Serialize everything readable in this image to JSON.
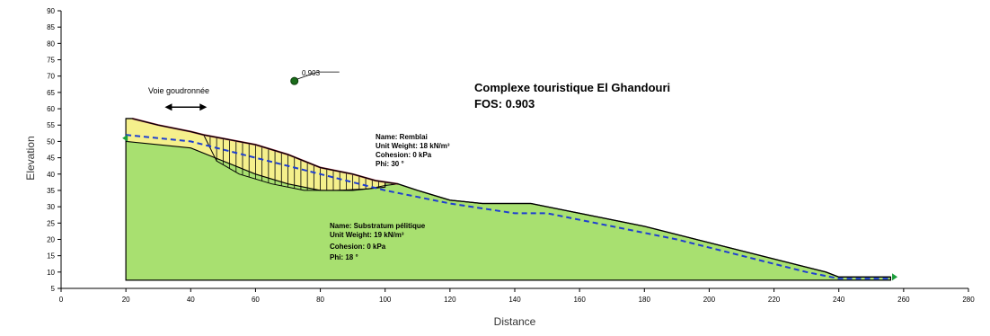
{
  "title": "Complexe touristique El Ghandouri",
  "fos_label": "FOS: 0.903",
  "slip_center_label": "0.903",
  "road_label": "Voie goudronnée",
  "axes": {
    "xlabel": "Distance",
    "ylabel": "Elevation",
    "xlim": [
      0,
      280
    ],
    "ylim": [
      5,
      90
    ],
    "xticks": [
      "0",
      "20",
      "40",
      "60",
      "80",
      "100",
      "120",
      "140",
      "160",
      "180",
      "200",
      "220",
      "240",
      "260",
      "280"
    ],
    "yticks": [
      "5",
      "10",
      "15",
      "20",
      "25",
      "30",
      "35",
      "40",
      "45",
      "50",
      "55",
      "60",
      "65",
      "70",
      "75",
      "80",
      "85",
      "90"
    ]
  },
  "materials": [
    {
      "name": "Name: Remblai",
      "unit_weight": "Unit Weight: 18 kN/m³",
      "cohesion": "Cohesion: 0 kPa",
      "phi": "Phi: 30 °",
      "color": "#f5f08c"
    },
    {
      "name": "Name: Substratum pélitique",
      "unit_weight": "Unit Weight: 19 kN/m³",
      "cohesion": "Cohesion: 0 kPa",
      "phi": "Phi: 18 °",
      "color": "#a8e070"
    }
  ],
  "colors": {
    "water_table": "#1f3fd0",
    "slip_surface": "#c0405a",
    "slice_lines": "#000000",
    "center_point": "#1a6b1a",
    "boundary": "#000000"
  },
  "geometry_units": {
    "ground_surface": [
      [
        20,
        57
      ],
      [
        22,
        57
      ],
      [
        30,
        55
      ],
      [
        40,
        53
      ],
      [
        44,
        52
      ],
      [
        60,
        49
      ],
      [
        70,
        46
      ],
      [
        80,
        42
      ],
      [
        90,
        40
      ],
      [
        97,
        38
      ],
      [
        104,
        37
      ],
      [
        110,
        35
      ],
      [
        120,
        32
      ],
      [
        130,
        31
      ],
      [
        145,
        31
      ],
      [
        160,
        28
      ],
      [
        180,
        24
      ],
      [
        200,
        19
      ],
      [
        220,
        14
      ],
      [
        236,
        10
      ],
      [
        240,
        8.5
      ],
      [
        256,
        8.5
      ]
    ],
    "material_boundary": [
      [
        20,
        50
      ],
      [
        40,
        48
      ],
      [
        50,
        44
      ],
      [
        60,
        40
      ],
      [
        70,
        37
      ],
      [
        80,
        35
      ],
      [
        90,
        35
      ],
      [
        100,
        36
      ]
    ],
    "base_y": 7.5,
    "water_table": [
      [
        20,
        52
      ],
      [
        40,
        50
      ],
      [
        60,
        45
      ],
      [
        80,
        40
      ],
      [
        100,
        35
      ],
      [
        120,
        31
      ],
      [
        140,
        28
      ],
      [
        150,
        28
      ],
      [
        170,
        24
      ],
      [
        190,
        20
      ],
      [
        210,
        15
      ],
      [
        230,
        10
      ],
      [
        240,
        8
      ],
      [
        256,
        8
      ]
    ],
    "slip_surface": [
      [
        44,
        52
      ],
      [
        48,
        44
      ],
      [
        55,
        40
      ],
      [
        65,
        37
      ],
      [
        75,
        35
      ],
      [
        85,
        35
      ],
      [
        95,
        35.5
      ],
      [
        100,
        36.5
      ],
      [
        104,
        37
      ]
    ],
    "slip_center": [
      72,
      68.5
    ],
    "road_arrow": [
      32,
      45
    ]
  }
}
